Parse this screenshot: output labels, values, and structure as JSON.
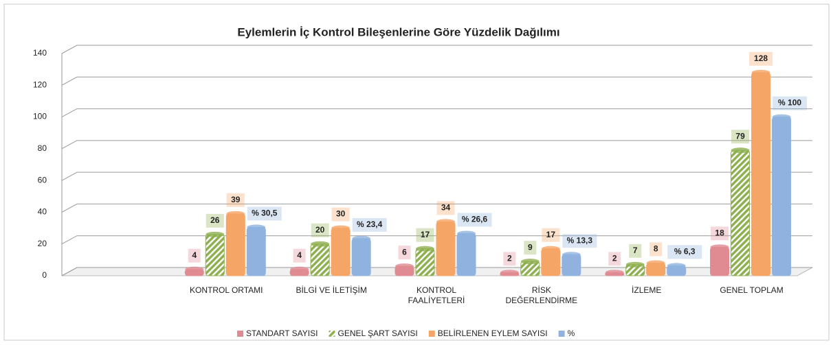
{
  "chart_data": {
    "type": "bar",
    "title": "Eylemlerin İç Kontrol Bileşenlerine Göre Yüzdelik Dağılımı",
    "categories": [
      null,
      "KONTROL ORTAMI",
      "BİLGİ VE İLETİŞİM",
      "KONTROL FAALİYETLERİ",
      "RİSK DEĞERLENDİRME",
      "İZLEME",
      "GENEL TOPLAM"
    ],
    "series": [
      {
        "name": "STANDART SAYISI",
        "color": "#e08a92",
        "values": [
          null,
          4,
          4,
          6,
          2,
          2,
          18
        ]
      },
      {
        "name": "GENEL ŞART SAYISI",
        "color": "#8fb050",
        "values": [
          null,
          26,
          20,
          17,
          9,
          7,
          79
        ]
      },
      {
        "name": "BELİRLENEN EYLEM SAYISI",
        "color": "#f5a566",
        "values": [
          null,
          39,
          30,
          34,
          17,
          8,
          128
        ]
      },
      {
        "name": "%",
        "color": "#8fb3de",
        "values": [
          null,
          30.5,
          23.4,
          26.6,
          13.3,
          6.3,
          100
        ],
        "value_labels": [
          null,
          "% 30,5",
          "% 23,4",
          "% 26,6",
          "% 13,3",
          "% 6,3",
          "% 100"
        ]
      }
    ],
    "ylim": [
      0,
      140
    ],
    "yticks": [
      0,
      20,
      40,
      60,
      80,
      100,
      120,
      140
    ],
    "grid": true,
    "legend": "bottom"
  }
}
